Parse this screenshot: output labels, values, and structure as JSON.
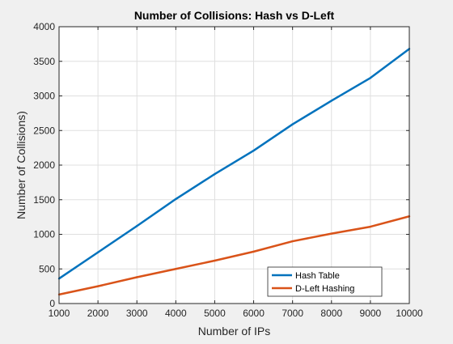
{
  "chart_data": {
    "type": "line",
    "title": "Number of Collisions: Hash vs D-Left",
    "xlabel": "Number of IPs",
    "ylabel": "Number of Collisions)",
    "xlim": [
      1000,
      10000
    ],
    "ylim": [
      0,
      4000
    ],
    "xticks": [
      1000,
      2000,
      3000,
      4000,
      5000,
      6000,
      7000,
      8000,
      9000,
      10000
    ],
    "yticks": [
      0,
      500,
      1000,
      1500,
      2000,
      2500,
      3000,
      3500,
      4000
    ],
    "grid": true,
    "legend_location": "bottom-right",
    "x": [
      1000,
      2000,
      3000,
      4000,
      5000,
      6000,
      7000,
      8000,
      9000,
      10000
    ],
    "series": [
      {
        "name": "Hash Table",
        "color": "#0072BD",
        "values": [
          360,
          740,
          1120,
          1510,
          1870,
          2210,
          2590,
          2930,
          3260,
          3680
        ]
      },
      {
        "name": "D-Left Hashing",
        "color": "#D95319",
        "values": [
          130,
          250,
          380,
          500,
          620,
          750,
          900,
          1010,
          1110,
          1260
        ]
      }
    ]
  }
}
